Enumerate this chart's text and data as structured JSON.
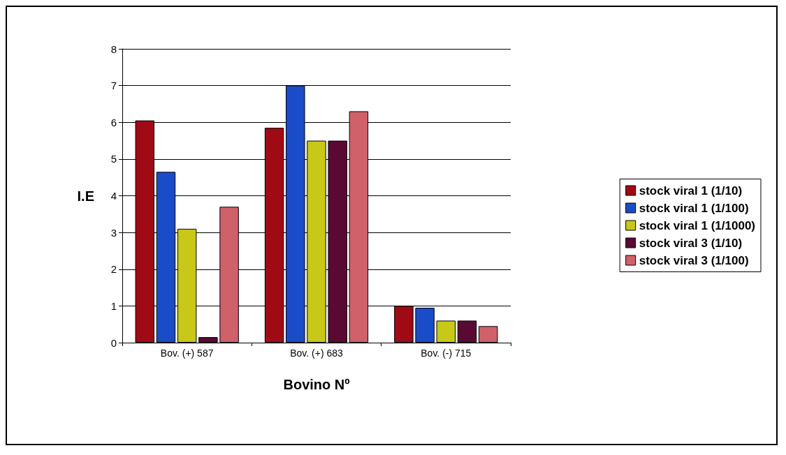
{
  "chart_data": {
    "type": "bar",
    "xlabel": "Bovino Nº",
    "ylabel": "I.E",
    "categories": [
      "Bov. (+) 587",
      "Bov. (+) 683",
      "Bov. (-) 715"
    ],
    "series": [
      {
        "name": "stock viral 1 (1/10)",
        "color": "#a00a14",
        "values": [
          6.05,
          5.85,
          1.0
        ]
      },
      {
        "name": "stock viral 1 (1/100)",
        "color": "#1a4cc8",
        "values": [
          4.65,
          7.0,
          0.95
        ]
      },
      {
        "name": "stock viral 1 (1/1000)",
        "color": "#c8c818",
        "values": [
          3.1,
          5.5,
          0.6
        ]
      },
      {
        "name": "stock viral 3 (1/10)",
        "color": "#5a0a32",
        "values": [
          0.15,
          5.5,
          0.6
        ]
      },
      {
        "name": "stock viral 3 (1/100)",
        "color": "#d0606a",
        "values": [
          3.7,
          6.3,
          0.45
        ]
      }
    ],
    "ylim": [
      0,
      8
    ],
    "yticks": [
      0,
      1,
      2,
      3,
      4,
      5,
      6,
      7,
      8
    ],
    "grid": "y",
    "legend": "right"
  }
}
